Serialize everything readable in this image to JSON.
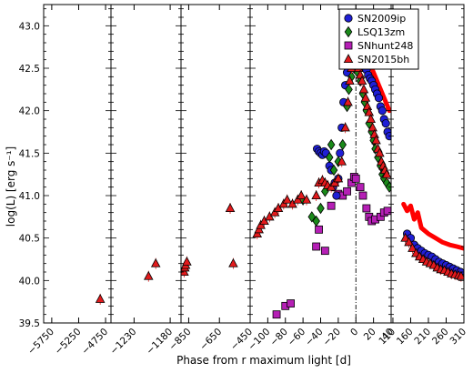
{
  "chart_data": {
    "type": "scatter",
    "xlabel": "Phase from r maximum light [d]",
    "ylabel": "log(L) [erg s⁻¹]",
    "ylim": [
      39.5,
      43.25
    ],
    "y_ticks": [
      "39.5",
      "40.0",
      "40.5",
      "41.0",
      "41.5",
      "42.0",
      "42.5",
      "43.0"
    ],
    "y_tick_values": [
      39.5,
      40.0,
      40.5,
      41.0,
      41.5,
      42.0,
      42.5,
      43.0
    ],
    "legend_position": "top-right",
    "colors": {
      "SN2009ip": "#1f1fd6",
      "LSQ13zm": "#1a8a1a",
      "SNhunt248": "#b51fb5",
      "SN2015bh": "#e31a1c",
      "model": "#ff0000"
    },
    "panels": [
      {
        "xlim": [
          -5900,
          -4650
        ],
        "ticks": [
          -5750,
          -5250,
          -4750
        ],
        "tick_labels": [
          "−5750",
          "−5250",
          "−4750"
        ]
      },
      {
        "xlim": [
          -1262,
          -1165
        ],
        "ticks": [
          -1230,
          -1180
        ],
        "tick_labels": [
          "−1230",
          "−1180"
        ]
      },
      {
        "xlim": [
          -900,
          -450
        ],
        "ticks": [
          -850,
          -650,
          -450
        ],
        "tick_labels": [
          "−850",
          "−650",
          "−450"
        ]
      },
      {
        "xlim": [
          -120,
          40
        ],
        "ticks": [
          -100,
          -80,
          -60,
          -40,
          -20,
          0,
          20,
          40
        ],
        "tick_labels": [
          "−100",
          "−80",
          "−60",
          "−40",
          "−20",
          "0",
          "20",
          "40"
        ]
      },
      {
        "xlim": [
          105,
          310
        ],
        "ticks": [
          110,
          160,
          210,
          260,
          310
        ],
        "tick_labels": [
          "110",
          "160",
          "210",
          "260",
          "310"
        ]
      }
    ],
    "series": [
      {
        "name": "SN2009ip",
        "marker": "circle",
        "points": [
          [
            -44,
            41.55
          ],
          [
            -42,
            41.52
          ],
          [
            -40,
            41.5
          ],
          [
            -38,
            41.48
          ],
          [
            -36,
            41.52
          ],
          [
            -34,
            41.5
          ],
          [
            -30,
            41.35
          ],
          [
            -28,
            41.3
          ],
          [
            -26,
            41.1
          ],
          [
            -24,
            41.15
          ],
          [
            -22,
            41.0
          ],
          [
            -20,
            41.2
          ],
          [
            -18,
            41.5
          ],
          [
            -16,
            41.8
          ],
          [
            -14,
            42.1
          ],
          [
            -12,
            42.3
          ],
          [
            -10,
            42.45
          ],
          [
            -8,
            42.55
          ],
          [
            -6,
            42.6
          ],
          [
            -4,
            42.65
          ],
          [
            -2,
            42.6
          ],
          [
            0,
            42.72
          ],
          [
            2,
            42.68
          ],
          [
            4,
            42.65
          ],
          [
            6,
            42.62
          ],
          [
            8,
            42.58
          ],
          [
            10,
            42.5
          ],
          [
            12,
            42.48
          ],
          [
            14,
            42.42
          ],
          [
            16,
            42.38
          ],
          [
            18,
            42.35
          ],
          [
            20,
            42.3
          ],
          [
            22,
            42.25
          ],
          [
            24,
            42.2
          ],
          [
            26,
            42.15
          ],
          [
            28,
            42.05
          ],
          [
            30,
            42.0
          ],
          [
            32,
            41.9
          ],
          [
            34,
            41.85
          ],
          [
            36,
            41.75
          ],
          [
            38,
            41.7
          ],
          [
            150,
            40.55
          ],
          [
            160,
            40.5
          ],
          [
            170,
            40.42
          ],
          [
            180,
            40.38
          ],
          [
            190,
            40.35
          ],
          [
            200,
            40.32
          ],
          [
            210,
            40.3
          ],
          [
            220,
            40.28
          ],
          [
            230,
            40.25
          ],
          [
            240,
            40.22
          ],
          [
            250,
            40.2
          ],
          [
            260,
            40.18
          ],
          [
            270,
            40.16
          ],
          [
            280,
            40.14
          ],
          [
            290,
            40.12
          ],
          [
            300,
            40.1
          ]
        ]
      },
      {
        "name": "LSQ13zm",
        "marker": "diamond",
        "points": [
          [
            -60,
            40.95
          ],
          [
            -50,
            40.75
          ],
          [
            -45,
            40.7
          ],
          [
            -40,
            40.85
          ],
          [
            -35,
            41.05
          ],
          [
            -30,
            41.45
          ],
          [
            -28,
            41.6
          ],
          [
            -25,
            41.3
          ],
          [
            -20,
            41.4
          ],
          [
            -15,
            41.6
          ],
          [
            -10,
            42.05
          ],
          [
            -8,
            42.25
          ],
          [
            -5,
            42.4
          ],
          [
            -2,
            42.5
          ],
          [
            0,
            42.55
          ],
          [
            2,
            42.45
          ],
          [
            5,
            42.35
          ],
          [
            8,
            42.2
          ],
          [
            10,
            42.1
          ],
          [
            12,
            42.0
          ],
          [
            15,
            41.85
          ],
          [
            18,
            41.75
          ],
          [
            20,
            41.65
          ],
          [
            22,
            41.55
          ],
          [
            25,
            41.45
          ],
          [
            28,
            41.35
          ],
          [
            30,
            41.25
          ],
          [
            32,
            41.2
          ],
          [
            35,
            41.15
          ],
          [
            38,
            41.1
          ]
        ]
      },
      {
        "name": "SNhunt248",
        "marker": "square",
        "points": [
          [
            -90,
            39.6
          ],
          [
            -80,
            39.7
          ],
          [
            -74,
            39.73
          ],
          [
            -45,
            40.4
          ],
          [
            -42,
            40.6
          ],
          [
            -35,
            40.35
          ],
          [
            -28,
            40.88
          ],
          [
            -20,
            41.02
          ],
          [
            -15,
            41.0
          ],
          [
            -10,
            41.05
          ],
          [
            -5,
            41.15
          ],
          [
            -2,
            41.22
          ],
          [
            0,
            41.2
          ],
          [
            5,
            41.1
          ],
          [
            8,
            41.0
          ],
          [
            12,
            40.85
          ],
          [
            15,
            40.75
          ],
          [
            18,
            40.7
          ],
          [
            22,
            40.72
          ],
          [
            28,
            40.75
          ],
          [
            32,
            40.8
          ],
          [
            36,
            40.82
          ]
        ]
      },
      {
        "name": "SN2015bh",
        "marker": "triangle",
        "points": [
          [
            -4850,
            39.78
          ],
          [
            -1210,
            40.05
          ],
          [
            -1200,
            40.2
          ],
          [
            -880,
            40.1
          ],
          [
            -875,
            40.15
          ],
          [
            -870,
            40.18
          ],
          [
            -862,
            40.22
          ],
          [
            -580,
            40.85
          ],
          [
            -560,
            40.2
          ],
          [
            -112,
            40.55
          ],
          [
            -110,
            40.6
          ],
          [
            -108,
            40.65
          ],
          [
            -104,
            40.7
          ],
          [
            -98,
            40.75
          ],
          [
            -92,
            40.8
          ],
          [
            -88,
            40.85
          ],
          [
            -82,
            40.9
          ],
          [
            -78,
            40.95
          ],
          [
            -72,
            40.9
          ],
          [
            -66,
            40.95
          ],
          [
            -62,
            41.0
          ],
          [
            -56,
            40.95
          ],
          [
            -45,
            41.0
          ],
          [
            -42,
            41.15
          ],
          [
            -38,
            41.18
          ],
          [
            -35,
            41.15
          ],
          [
            -32,
            41.12
          ],
          [
            -28,
            41.1
          ],
          [
            -24,
            41.15
          ],
          [
            -20,
            41.2
          ],
          [
            -16,
            41.4
          ],
          [
            -12,
            41.8
          ],
          [
            -9,
            42.1
          ],
          [
            -7,
            42.35
          ],
          [
            -5,
            42.5
          ],
          [
            -3,
            42.6
          ],
          [
            -1,
            42.62
          ],
          [
            1,
            42.58
          ],
          [
            3,
            42.5
          ],
          [
            5,
            42.42
          ],
          [
            7,
            42.35
          ],
          [
            9,
            42.25
          ],
          [
            11,
            42.15
          ],
          [
            13,
            42.05
          ],
          [
            15,
            41.98
          ],
          [
            17,
            41.9
          ],
          [
            19,
            41.8
          ],
          [
            21,
            41.72
          ],
          [
            23,
            41.65
          ],
          [
            25,
            41.55
          ],
          [
            27,
            41.5
          ],
          [
            29,
            41.4
          ],
          [
            31,
            41.35
          ],
          [
            33,
            41.3
          ],
          [
            35,
            41.25
          ],
          [
            145,
            40.5
          ],
          [
            155,
            40.45
          ],
          [
            165,
            40.38
          ],
          [
            175,
            40.32
          ],
          [
            185,
            40.28
          ],
          [
            195,
            40.25
          ],
          [
            205,
            40.22
          ],
          [
            215,
            40.2
          ],
          [
            225,
            40.18
          ],
          [
            235,
            40.15
          ],
          [
            245,
            40.13
          ],
          [
            255,
            40.12
          ],
          [
            265,
            40.1
          ],
          [
            275,
            40.08
          ],
          [
            285,
            40.07
          ],
          [
            295,
            40.06
          ],
          [
            302,
            40.05
          ]
        ]
      }
    ],
    "model_curve": [
      [
        [
          -5,
          42.65
        ],
        [
          -2,
          42.75
        ],
        [
          0,
          42.82
        ],
        [
          2,
          42.85
        ],
        [
          4,
          42.8
        ],
        [
          6,
          42.75
        ],
        [
          8,
          42.7
        ],
        [
          10,
          42.65
        ],
        [
          14,
          42.58
        ],
        [
          18,
          42.5
        ],
        [
          22,
          42.4
        ],
        [
          26,
          42.3
        ],
        [
          30,
          42.2
        ],
        [
          34,
          42.1
        ],
        [
          38,
          42.0
        ]
      ],
      [
        [
          140,
          40.9
        ],
        [
          150,
          40.82
        ],
        [
          160,
          40.88
        ],
        [
          170,
          40.72
        ],
        [
          180,
          40.8
        ],
        [
          190,
          40.62
        ],
        [
          210,
          40.55
        ],
        [
          230,
          40.5
        ],
        [
          250,
          40.45
        ],
        [
          270,
          40.42
        ],
        [
          290,
          40.4
        ],
        [
          308,
          40.38
        ]
      ]
    ],
    "vertical_line_x": 0
  }
}
